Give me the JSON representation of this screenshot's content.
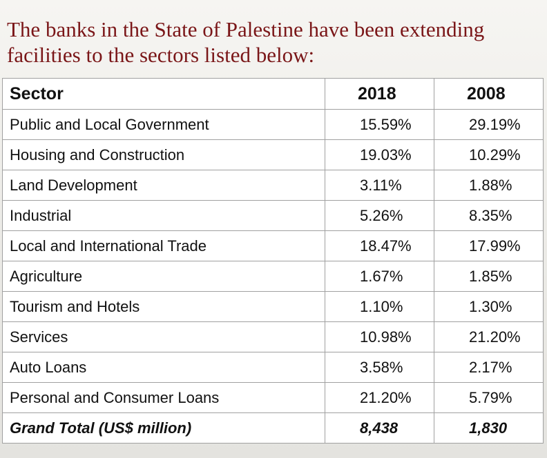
{
  "heading": {
    "line1": "The banks in the State of Palestine have been extending",
    "line2": "facilities to the sectors listed below:"
  },
  "table": {
    "headers": [
      "Sector",
      "2018",
      "2008"
    ],
    "rows": [
      [
        "Public and Local Government",
        "15.59%",
        "29.19%"
      ],
      [
        "Housing and Construction",
        "19.03%",
        "10.29%"
      ],
      [
        "Land Development",
        "3.11%",
        "1.88%"
      ],
      [
        "Industrial",
        "5.26%",
        "8.35%"
      ],
      [
        "Local and International Trade",
        "18.47%",
        "17.99%"
      ],
      [
        "Agriculture",
        "1.67%",
        "1.85%"
      ],
      [
        "Tourism and Hotels",
        "1.10%",
        "1.30%"
      ],
      [
        "Services",
        "10.98%",
        "21.20%"
      ],
      [
        "Auto Loans",
        "3.58%",
        "2.17%"
      ],
      [
        "Personal and Consumer Loans",
        "21.20%",
        "5.79%"
      ]
    ],
    "total": [
      "Grand Total (US$ million)",
      "8,438",
      "1,830"
    ]
  }
}
